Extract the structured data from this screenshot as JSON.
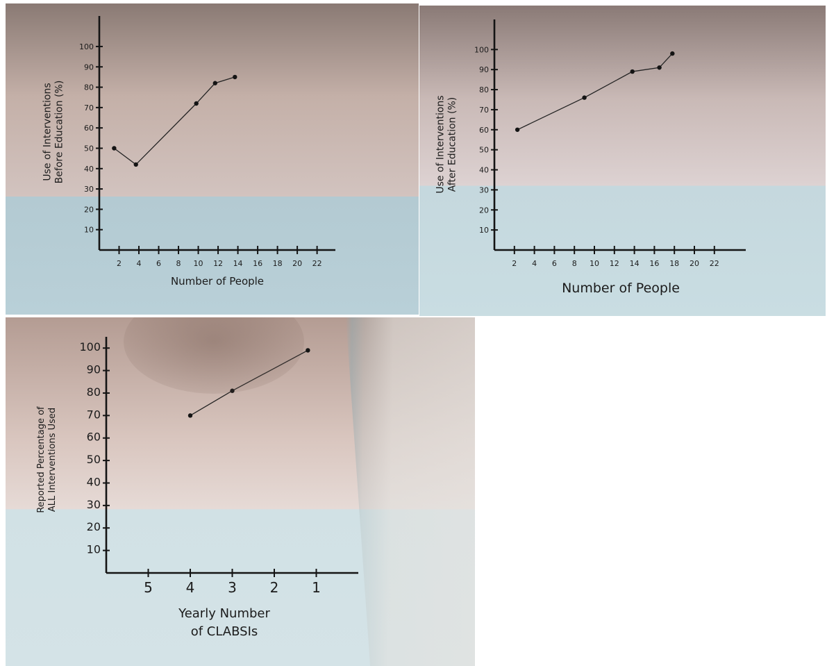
{
  "chart_data": [
    {
      "type": "line",
      "title": "",
      "xlabel": "Number of People",
      "ylabel_lines": [
        "Use of Interventions",
        "Before Education (%)"
      ],
      "x_ticks": [
        2,
        4,
        6,
        8,
        10,
        12,
        14,
        16,
        18,
        20,
        22
      ],
      "x_tick_labels": [
        "2",
        "4",
        "6",
        "8",
        "10",
        "12",
        "14",
        "16",
        "18",
        "20",
        "22"
      ],
      "y_ticks": [
        10,
        20,
        30,
        40,
        50,
        60,
        70,
        80,
        90,
        100
      ],
      "y_tick_labels": [
        "10",
        "20",
        "30",
        "40",
        "50",
        "60",
        "70",
        "80",
        "90",
        "100"
      ],
      "xlim": [
        0,
        23.5
      ],
      "ylim": [
        0,
        115
      ],
      "grid": false,
      "series": [
        {
          "x": [
            1.5,
            3.7,
            9.8,
            11.7,
            13.7
          ],
          "y": [
            50,
            42,
            72,
            82,
            85
          ]
        }
      ]
    },
    {
      "type": "line",
      "title": "",
      "xlabel": "Number of People",
      "ylabel_lines": [
        "Use of Interventions",
        "After Education (%)"
      ],
      "x_ticks": [
        2,
        4,
        6,
        8,
        10,
        12,
        14,
        16,
        18,
        20,
        22
      ],
      "x_tick_labels": [
        "2",
        "4",
        "6",
        "8",
        "10",
        "12",
        "14",
        "16",
        "18",
        "20",
        "22"
      ],
      "y_ticks": [
        10,
        20,
        30,
        40,
        50,
        60,
        70,
        80,
        90,
        100
      ],
      "y_tick_labels": [
        "10",
        "20",
        "30",
        "40",
        "50",
        "60",
        "70",
        "80",
        "90",
        "100"
      ],
      "xlim": [
        0,
        25
      ],
      "ylim": [
        0,
        115
      ],
      "grid": false,
      "series": [
        {
          "x": [
            2.3,
            9,
            13.8,
            16.5,
            17.8
          ],
          "y": [
            60,
            76,
            89,
            91,
            98
          ]
        }
      ]
    },
    {
      "type": "line",
      "title": "",
      "xlabel_lines": [
        "Yearly Number",
        "of CLABSIs"
      ],
      "ylabel_lines": [
        "Reported Percentage of",
        "ALL Interventions Used"
      ],
      "x_ticks": [
        5,
        4,
        3,
        2,
        1
      ],
      "x_tick_labels": [
        "5",
        "4",
        "3",
        "2",
        "1"
      ],
      "x_reversed": true,
      "y_ticks": [
        10,
        20,
        30,
        40,
        50,
        60,
        70,
        80,
        90,
        100
      ],
      "y_tick_labels": [
        "10",
        "20",
        "30",
        "40",
        "50",
        "60",
        "70",
        "80",
        "90",
        "100"
      ],
      "xlim": [
        6,
        0
      ],
      "ylim": [
        0,
        105
      ],
      "grid": false,
      "series": [
        {
          "x": [
            4,
            3,
            1.2
          ],
          "y": [
            70,
            81,
            99
          ]
        }
      ]
    }
  ]
}
